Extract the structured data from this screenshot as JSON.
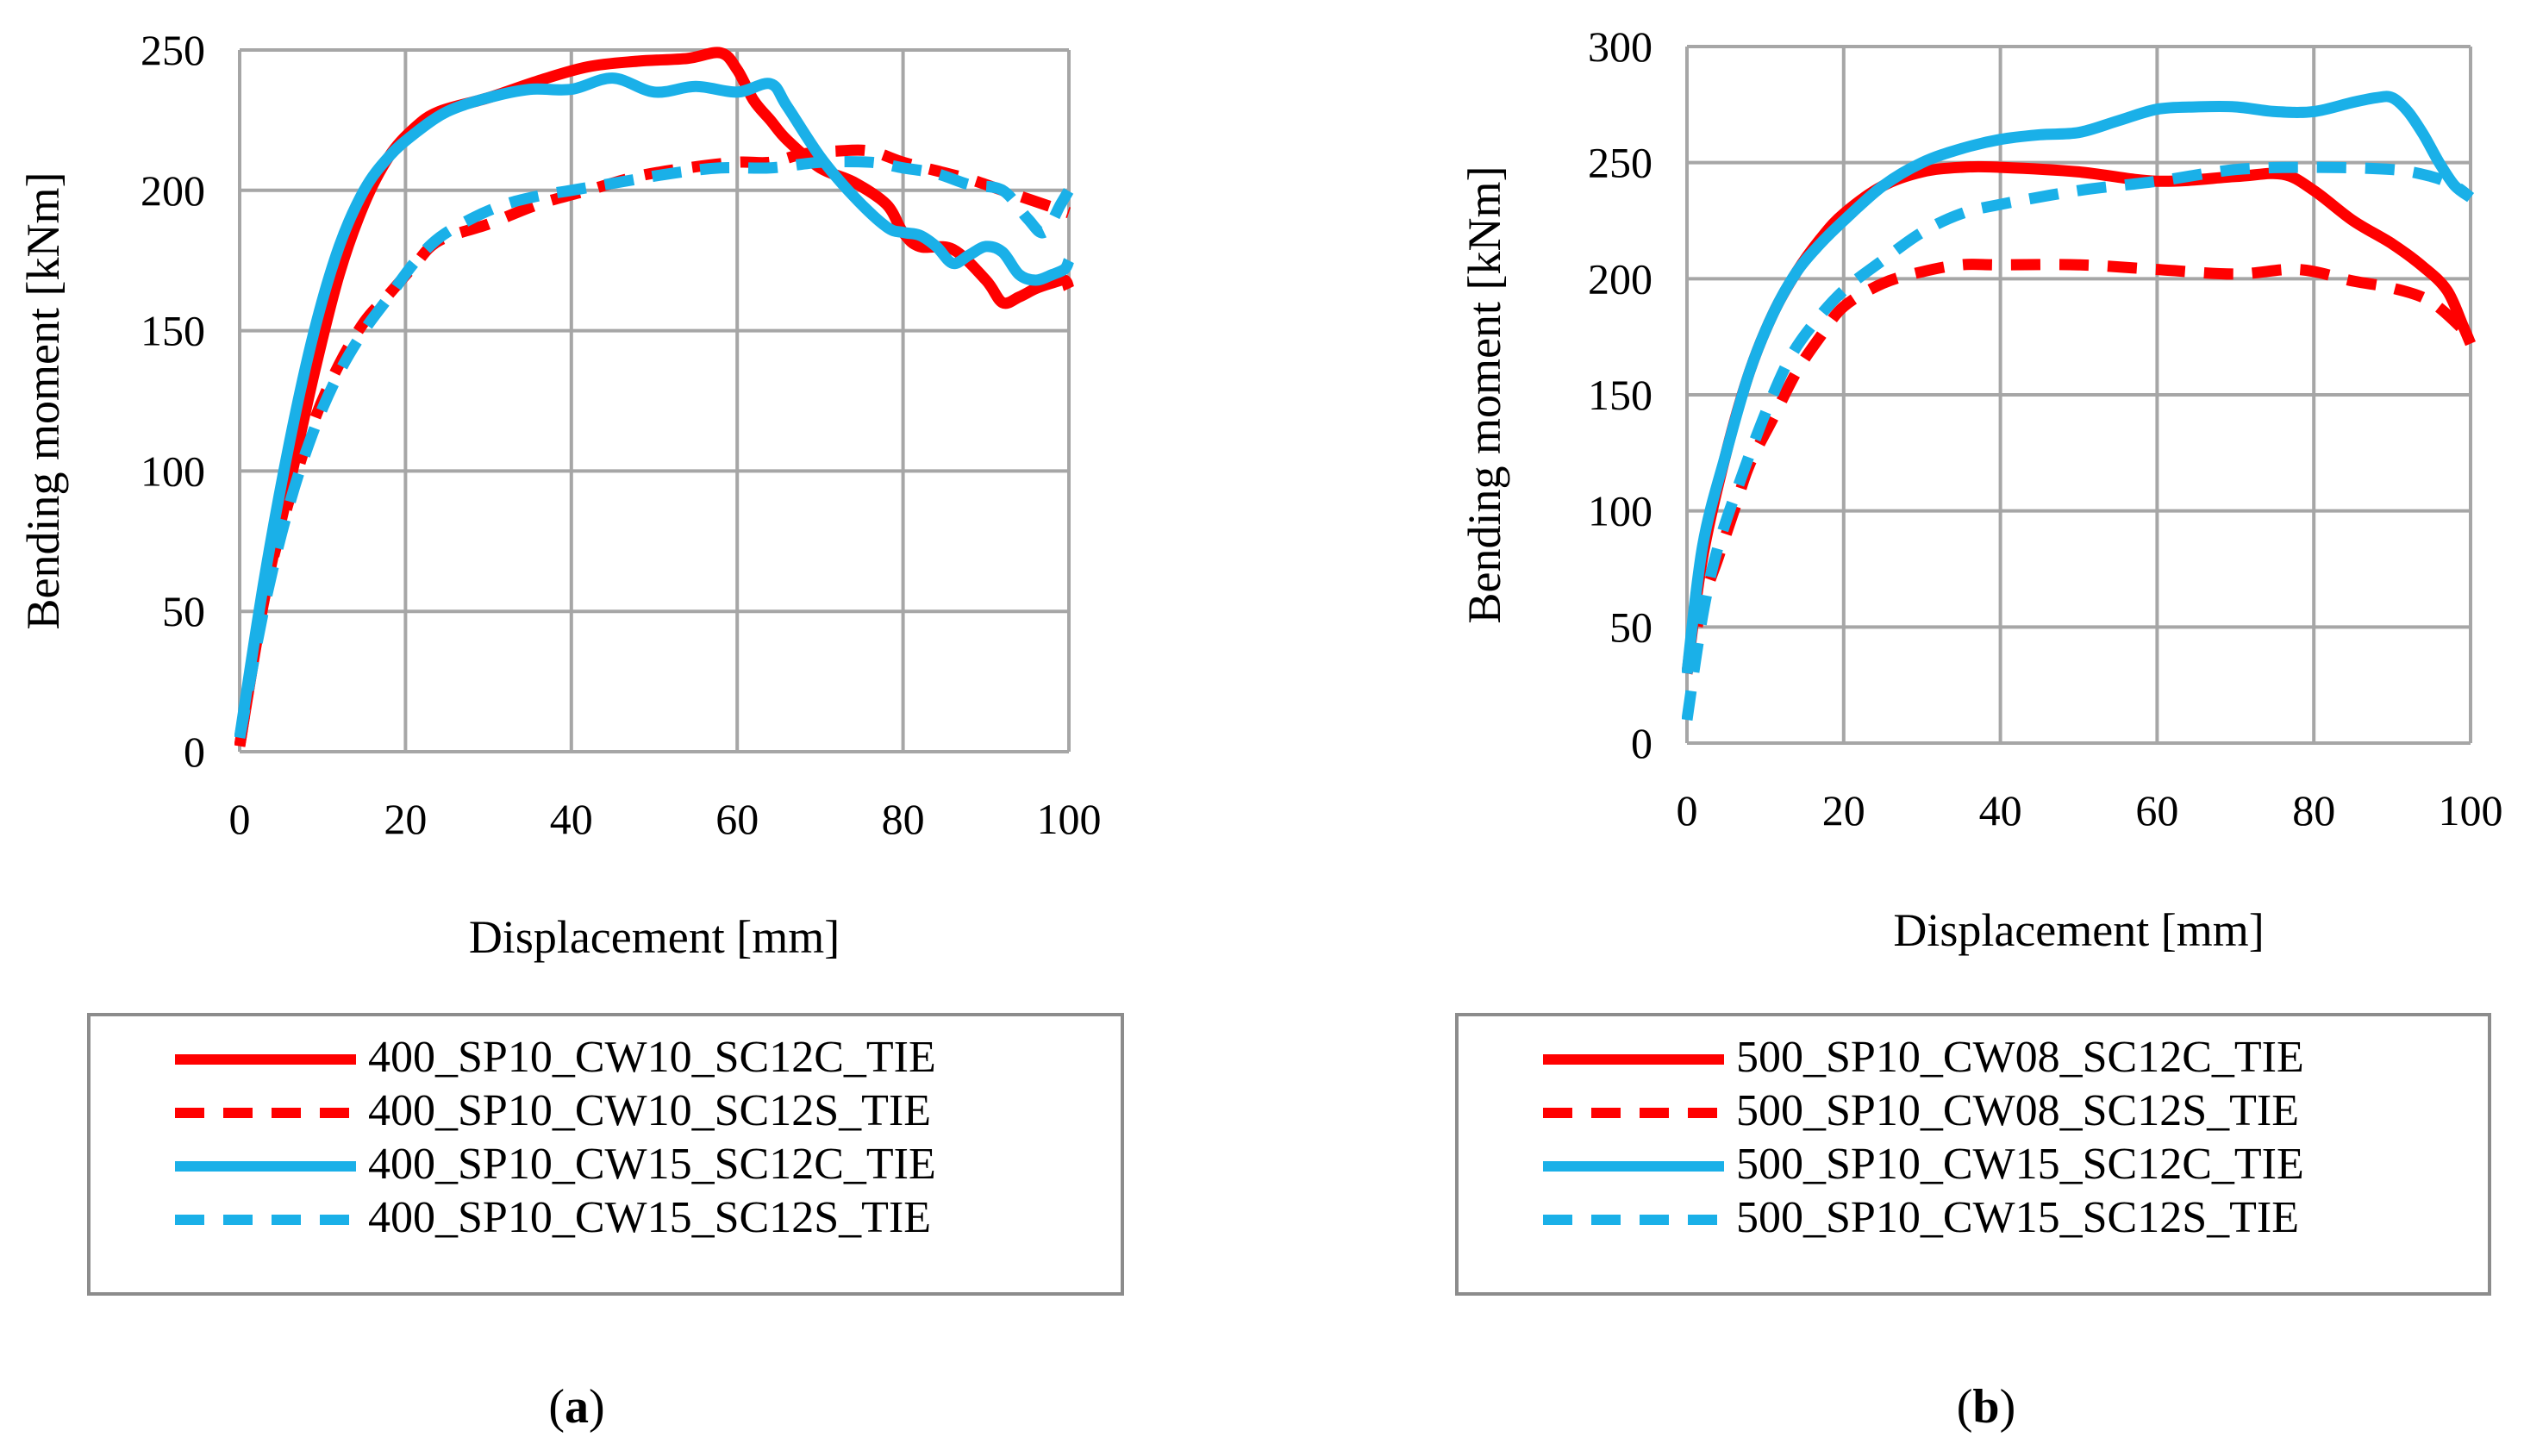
{
  "chart_data": [
    {
      "id": "a",
      "type": "line",
      "caption_letter": "a",
      "xlabel": "Displacement [mm]",
      "ylabel": "Bending moment [kNm]",
      "xlim": [
        0,
        100
      ],
      "ylim": [
        0,
        250
      ],
      "xticks": [
        0,
        20,
        40,
        60,
        80,
        100
      ],
      "yticks": [
        0,
        50,
        100,
        150,
        200,
        250
      ],
      "grid": true,
      "legend_position": "bottom",
      "series": [
        {
          "name": "400_SP10_CW10_SC12C_TIE",
          "color": "#ff0000",
          "dash": "solid",
          "x": [
            0,
            3,
            6,
            9,
            12,
            15,
            18,
            21,
            24,
            30,
            36,
            42,
            48,
            54,
            58,
            60,
            62,
            64,
            66,
            70,
            74,
            78,
            80,
            82,
            86,
            90,
            92,
            94,
            96,
            98,
            99.5,
            100
          ],
          "y": [
            2,
            55,
            95,
            135,
            170,
            195,
            212,
            222,
            228,
            233,
            239,
            244,
            246,
            247,
            249,
            243,
            232,
            225,
            218,
            208,
            203,
            195,
            185,
            180,
            179,
            168,
            160,
            162,
            165,
            167,
            168,
            165
          ]
        },
        {
          "name": "400_SP10_CW10_SC12S_TIE",
          "color": "#ff0000",
          "dash": "dashed",
          "x": [
            0,
            3,
            6,
            9,
            12,
            15,
            18,
            21,
            24,
            30,
            36,
            42,
            48,
            54,
            60,
            64,
            68,
            72,
            76,
            80,
            84,
            88,
            92,
            96,
            100
          ],
          "y": [
            2,
            55,
            90,
            118,
            138,
            153,
            163,
            173,
            182,
            188,
            195,
            200,
            205,
            208,
            210,
            210,
            213,
            214,
            214,
            210,
            207,
            204,
            200,
            196,
            192
          ]
        },
        {
          "name": "400_SP10_CW15_SC12C_TIE",
          "color": "#1ab0e8",
          "dash": "solid",
          "x": [
            0,
            3,
            6,
            9,
            12,
            15,
            18,
            21,
            25,
            30,
            35,
            40,
            45,
            50,
            55,
            60,
            64,
            66,
            70,
            74,
            78,
            80,
            82,
            84,
            86,
            88,
            90,
            92,
            94,
            96,
            98,
            99.5,
            100
          ],
          "y": [
            5,
            62,
            110,
            150,
            180,
            200,
            212,
            220,
            228,
            233,
            236,
            236,
            240,
            235,
            237,
            235,
            238,
            230,
            212,
            198,
            187,
            185,
            184,
            180,
            174,
            177,
            180,
            178,
            170,
            168,
            170,
            172,
            175
          ]
        },
        {
          "name": "400_SP10_CW15_SC12S_TIE",
          "color": "#1ab0e8",
          "dash": "dashed",
          "x": [
            0,
            3,
            6,
            9,
            12,
            15,
            18,
            21,
            24,
            28,
            32,
            36,
            40,
            46,
            52,
            58,
            64,
            70,
            76,
            80,
            84,
            88,
            92,
            95,
            97,
            99,
            100
          ],
          "y": [
            5,
            52,
            88,
            115,
            135,
            150,
            162,
            174,
            183,
            190,
            195,
            198,
            200,
            203,
            206,
            208,
            208,
            210,
            210,
            208,
            206,
            202,
            200,
            190,
            185,
            195,
            200
          ]
        }
      ]
    },
    {
      "id": "b",
      "type": "line",
      "caption_letter": "b",
      "xlabel": "Displacement [mm]",
      "ylabel": "Bending moment [kNm]",
      "xlim": [
        0,
        100
      ],
      "ylim": [
        0,
        300
      ],
      "xticks": [
        0,
        20,
        40,
        60,
        80,
        100
      ],
      "yticks": [
        0,
        50,
        100,
        150,
        200,
        250,
        300
      ],
      "grid": true,
      "legend_position": "bottom",
      "series": [
        {
          "name": "500_SP10_CW08_SC12C_TIE",
          "color": "#ff0000",
          "dash": "solid",
          "x": [
            0,
            2,
            5,
            8,
            11,
            14,
            17,
            20,
            25,
            30,
            35,
            40,
            50,
            60,
            70,
            76,
            80,
            85,
            90,
            94,
            97,
            99,
            100
          ],
          "y": [
            30,
            80,
            125,
            160,
            185,
            203,
            217,
            228,
            240,
            246,
            248,
            248,
            246,
            242,
            244,
            245,
            238,
            225,
            215,
            205,
            195,
            180,
            172
          ]
        },
        {
          "name": "500_SP10_CW08_SC12S_TIE",
          "color": "#ff0000",
          "dash": "dashed",
          "x": [
            0,
            2,
            4,
            6,
            8,
            11,
            14,
            17,
            20,
            25,
            30,
            35,
            40,
            50,
            60,
            70,
            78,
            85,
            90,
            95,
            100
          ],
          "y": [
            30,
            60,
            80,
            100,
            120,
            140,
            160,
            175,
            188,
            198,
            203,
            206,
            206,
            206,
            204,
            202,
            204,
            199,
            196,
            190,
            175
          ]
        },
        {
          "name": "500_SP10_CW15_SC12C_TIE",
          "color": "#1ab0e8",
          "dash": "solid",
          "x": [
            0,
            2,
            5,
            8,
            11,
            14,
            17,
            20,
            25,
            30,
            35,
            40,
            45,
            50,
            55,
            60,
            65,
            70,
            75,
            80,
            85,
            88,
            90,
            92,
            94,
            96,
            98,
            100
          ],
          "y": [
            30,
            85,
            125,
            160,
            185,
            203,
            215,
            225,
            240,
            250,
            256,
            260,
            262,
            263,
            268,
            273,
            274,
            274,
            272,
            272,
            276,
            278,
            278,
            272,
            262,
            250,
            240,
            235
          ]
        },
        {
          "name": "500_SP10_CW15_SC12S_TIE",
          "color": "#1ab0e8",
          "dash": "dashed",
          "x": [
            0,
            2,
            4,
            7,
            10,
            13,
            16,
            20,
            25,
            30,
            35,
            40,
            50,
            60,
            70,
            80,
            90,
            95,
            98,
            100
          ],
          "y": [
            10,
            55,
            85,
            115,
            142,
            165,
            180,
            195,
            208,
            220,
            228,
            232,
            238,
            242,
            247,
            248,
            247,
            244,
            240,
            235
          ]
        }
      ]
    }
  ]
}
